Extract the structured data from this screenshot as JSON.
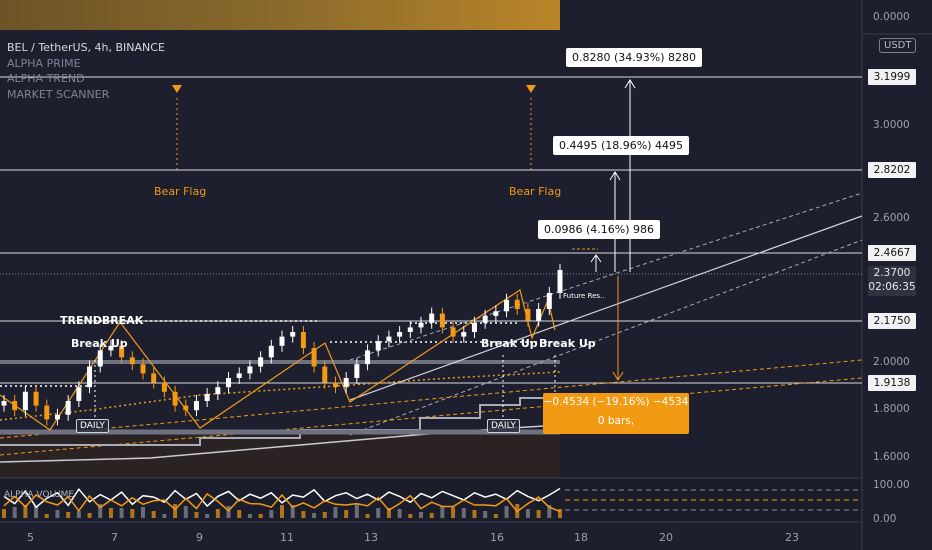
{
  "header": {
    "symbol_line": "BEL / TetherUS, 4h, BINANCE",
    "indicators": [
      "ALPHA PRIME",
      "ALPHA TREND",
      "MARKET SCANNER"
    ]
  },
  "price_axis": {
    "currency": "USDT",
    "top_value": "0.0000",
    "levels": {
      "l3199": "3.1999",
      "l3000": "3.0000",
      "l2820": "2.8202",
      "l2600": "2.6000",
      "l2466": "2.4667",
      "l2370": "2.3700",
      "countdown": "02:06:35",
      "l2175": "2.1750",
      "l2000": "2.0000",
      "l1913": "1.9138",
      "l1800": "1.8000",
      "l1600": "1.6000"
    },
    "osc_values": {
      "top": "100.00",
      "bottom": "0.00"
    }
  },
  "time_axis": [
    "5",
    "7",
    "9",
    "11",
    "13",
    "16",
    "18",
    "20",
    "23"
  ],
  "measure_boxes": {
    "m1": "0.8280 (34.93%) 8280",
    "m2": "0.4495 (18.96%) 4495",
    "m3": "0.0986 (4.16%) 986",
    "down_line1": "−0.4534 (−19.16%) −4534",
    "down_line2": "0 bars,"
  },
  "annotations": {
    "trendbreak": "TRENDBREAK",
    "breakup1": "Break Up",
    "breakup2": "Break Up",
    "breakup3": "Break Up",
    "bearflag1": "Bear Flag",
    "bearflag2": "Bear Flag",
    "daily1": "DAILY",
    "daily2": "DAILY",
    "future": "Future Res..",
    "osc_name": "ALPHA VOLUME"
  },
  "colors": {
    "background": "#1d1f2e",
    "accent": "#f29a13",
    "bull": "#ffffff",
    "bear": "#f29a13",
    "trend": "#c8cbd2"
  },
  "chart_data": {
    "type": "candlestick",
    "symbol": "BEL / TetherUS",
    "interval": "4h",
    "exchange": "BINANCE",
    "ylim": [
      1.5,
      3.4
    ],
    "last_price": 2.37,
    "x_tick_labels": [
      "5",
      "7",
      "9",
      "11",
      "13",
      "16",
      "18",
      "20",
      "23"
    ],
    "horizontal_levels": [
      3.1999,
      2.8202,
      2.4667,
      2.37,
      2.175,
      1.9138
    ],
    "close_path": [
      1.8,
      1.76,
      1.84,
      1.78,
      1.72,
      1.74,
      1.8,
      1.86,
      1.95,
      2.02,
      2.04,
      1.99,
      1.96,
      1.92,
      1.88,
      1.84,
      1.78,
      1.76,
      1.8,
      1.83,
      1.86,
      1.9,
      1.92,
      1.95,
      1.99,
      2.04,
      2.08,
      2.1,
      2.03,
      1.95,
      1.88,
      1.86,
      1.9,
      1.96,
      2.02,
      2.06,
      2.08,
      2.1,
      2.12,
      2.14,
      2.18,
      2.12,
      2.08,
      2.1,
      2.14,
      2.17,
      2.19,
      2.24,
      2.2,
      2.15,
      2.2,
      2.27,
      2.37
    ]
  }
}
